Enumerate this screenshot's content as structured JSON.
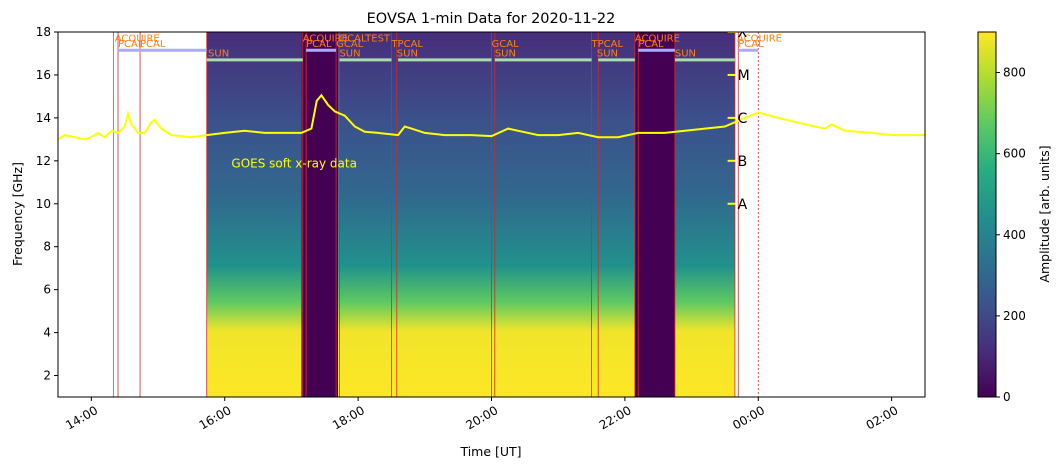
{
  "chart_data": {
    "type": "heatmap",
    "title": "EOVSA 1-min Data for 2020-11-22",
    "xlabel": "Time [UT]",
    "ylabel": "Frequency [GHz]",
    "xlim_hours": [
      13.5,
      26.5
    ],
    "ylim": [
      1,
      18
    ],
    "x_ticks": [
      {
        "hour": 14,
        "label": "14:00"
      },
      {
        "hour": 16,
        "label": "16:00"
      },
      {
        "hour": 18,
        "label": "18:00"
      },
      {
        "hour": 20,
        "label": "20:00"
      },
      {
        "hour": 22,
        "label": "22:00"
      },
      {
        "hour": 24,
        "label": "00:00"
      },
      {
        "hour": 26,
        "label": "02:00"
      }
    ],
    "y_ticks": [
      {
        "value": 2,
        "label": "2"
      },
      {
        "value": 4,
        "label": "4"
      },
      {
        "value": 6,
        "label": "6"
      },
      {
        "value": 8,
        "label": "8"
      },
      {
        "value": 10,
        "label": "10"
      },
      {
        "value": 12,
        "label": "12"
      },
      {
        "value": 14,
        "label": "14"
      },
      {
        "value": 16,
        "label": "16"
      },
      {
        "value": 18,
        "label": "18"
      }
    ],
    "colorbar": {
      "label": "Amplitude [arb. units]",
      "range": [
        0,
        900
      ],
      "colormap": "viridis",
      "ticks": [
        {
          "value": 0,
          "label": "0"
        },
        {
          "value": 200,
          "label": "200"
        },
        {
          "value": 400,
          "label": "400"
        },
        {
          "value": 600,
          "label": "600"
        },
        {
          "value": 800,
          "label": "800"
        }
      ]
    },
    "data_segments": [
      {
        "start": 15.73,
        "end": 17.15,
        "kind": "sun"
      },
      {
        "start": 17.15,
        "end": 17.7,
        "kind": "calibration"
      },
      {
        "start": 17.7,
        "end": 22.15,
        "kind": "sun"
      },
      {
        "start": 22.15,
        "end": 22.75,
        "kind": "calibration"
      },
      {
        "start": 22.75,
        "end": 23.65,
        "kind": "sun"
      }
    ],
    "schedule_lines": [
      {
        "hour": 14.33,
        "color": "#2ca02c"
      },
      {
        "hour": 14.4,
        "color": "#d62728"
      },
      {
        "hour": 14.73,
        "color": "#d62728"
      },
      {
        "hour": 15.73,
        "color": "#d62728"
      },
      {
        "hour": 17.17,
        "color": "#d62728"
      },
      {
        "hour": 17.22,
        "color": "#d62728"
      },
      {
        "hour": 17.67,
        "color": "#d62728"
      },
      {
        "hour": 17.72,
        "color": "#d62728"
      },
      {
        "hour": 18.5,
        "color": "#d62728"
      },
      {
        "hour": 18.58,
        "color": "#d62728"
      },
      {
        "hour": 20.0,
        "color": "#d62728"
      },
      {
        "hour": 20.05,
        "color": "#d62728"
      },
      {
        "hour": 21.5,
        "color": "#d62728"
      },
      {
        "hour": 21.6,
        "color": "#d62728"
      },
      {
        "hour": 22.15,
        "color": "#d62728"
      },
      {
        "hour": 22.2,
        "color": "#d62728"
      },
      {
        "hour": 22.75,
        "color": "#d62728"
      },
      {
        "hour": 23.65,
        "color": "#d62728"
      },
      {
        "hour": 23.7,
        "color": "#d62728"
      },
      {
        "hour": 24.0,
        "color": "#d62728",
        "dashed": true
      }
    ],
    "schedule_bars": [
      {
        "start": 14.4,
        "end": 15.73,
        "y": 17.15,
        "color": "#aaaaff"
      },
      {
        "start": 15.73,
        "end": 17.17,
        "y": 16.7,
        "color": "#aaddaa"
      },
      {
        "start": 17.22,
        "end": 17.67,
        "y": 17.15,
        "color": "#aaaaff"
      },
      {
        "start": 17.72,
        "end": 18.5,
        "y": 16.7,
        "color": "#aaddaa"
      },
      {
        "start": 18.6,
        "end": 20.0,
        "y": 16.7,
        "color": "#aaddaa"
      },
      {
        "start": 20.05,
        "end": 21.5,
        "y": 16.7,
        "color": "#aaddaa"
      },
      {
        "start": 21.6,
        "end": 22.15,
        "y": 16.7,
        "color": "#aaddaa"
      },
      {
        "start": 22.2,
        "end": 22.75,
        "y": 17.15,
        "color": "#aaaaff"
      },
      {
        "start": 22.75,
        "end": 23.65,
        "y": 16.7,
        "color": "#aaddaa"
      },
      {
        "start": 23.7,
        "end": 24.0,
        "y": 17.15,
        "color": "#aaaaff"
      }
    ],
    "schedule_labels": [
      {
        "hour": 14.35,
        "y": 17.55,
        "text": "ACQUIRE"
      },
      {
        "hour": 14.4,
        "y": 17.3,
        "text": "PCAL"
      },
      {
        "hour": 14.73,
        "y": 17.3,
        "text": "PCAL"
      },
      {
        "hour": 15.75,
        "y": 16.85,
        "text": "SUN"
      },
      {
        "hour": 17.17,
        "y": 17.55,
        "text": "ACQUIRE"
      },
      {
        "hour": 17.22,
        "y": 17.3,
        "text": "PCAL"
      },
      {
        "hour": 17.72,
        "y": 17.55,
        "text": "DCALTEST"
      },
      {
        "hour": 17.67,
        "y": 17.3,
        "text": "GCAL"
      },
      {
        "hour": 17.72,
        "y": 16.85,
        "text": "SUN"
      },
      {
        "hour": 18.5,
        "y": 17.3,
        "text": "TPCAL"
      },
      {
        "hour": 18.58,
        "y": 16.85,
        "text": "SUN"
      },
      {
        "hour": 20.0,
        "y": 17.3,
        "text": "GCAL"
      },
      {
        "hour": 20.05,
        "y": 16.85,
        "text": "SUN"
      },
      {
        "hour": 21.5,
        "y": 17.3,
        "text": "TPCAL"
      },
      {
        "hour": 21.58,
        "y": 16.85,
        "text": "SUN"
      },
      {
        "hour": 22.15,
        "y": 17.55,
        "text": "ACQUIRE"
      },
      {
        "hour": 22.2,
        "y": 17.3,
        "text": "PCAL"
      },
      {
        "hour": 22.75,
        "y": 16.85,
        "text": "SUN"
      },
      {
        "hour": 23.68,
        "y": 17.55,
        "text": "ACQUIRE"
      },
      {
        "hour": 23.7,
        "y": 17.3,
        "text": "PCAL"
      }
    ],
    "goes": {
      "label": "GOES soft x-ray data",
      "label_pos": {
        "hour": 16.1,
        "y": 11.7
      },
      "color": "#ffff00",
      "class_ticks": [
        {
          "label": "X",
          "y": 18.0
        },
        {
          "label": "M",
          "y": 16.0
        },
        {
          "label": "C",
          "y": 14.0
        },
        {
          "label": "B",
          "y": 12.0
        },
        {
          "label": "A",
          "y": 10.0
        }
      ],
      "class_tick_hour": 23.6,
      "curve": [
        [
          13.5,
          13.0
        ],
        [
          13.6,
          13.2
        ],
        [
          13.75,
          13.1
        ],
        [
          13.9,
          13.0
        ],
        [
          14.0,
          13.1
        ],
        [
          14.1,
          13.3
        ],
        [
          14.2,
          13.1
        ],
        [
          14.3,
          13.4
        ],
        [
          14.4,
          13.3
        ],
        [
          14.5,
          13.6
        ],
        [
          14.55,
          14.2
        ],
        [
          14.6,
          13.7
        ],
        [
          14.7,
          13.3
        ],
        [
          14.8,
          13.3
        ],
        [
          14.9,
          13.8
        ],
        [
          14.95,
          13.9
        ],
        [
          15.05,
          13.5
        ],
        [
          15.2,
          13.2
        ],
        [
          15.5,
          13.1
        ],
        [
          15.73,
          13.2
        ],
        [
          16.0,
          13.3
        ],
        [
          16.3,
          13.4
        ],
        [
          16.6,
          13.3
        ],
        [
          16.9,
          13.3
        ],
        [
          17.15,
          13.3
        ],
        [
          17.3,
          13.5
        ],
        [
          17.38,
          14.8
        ],
        [
          17.45,
          15.05
        ],
        [
          17.55,
          14.6
        ],
        [
          17.65,
          14.3
        ],
        [
          17.8,
          14.1
        ],
        [
          17.95,
          13.6
        ],
        [
          18.1,
          13.35
        ],
        [
          18.3,
          13.3
        ],
        [
          18.6,
          13.2
        ],
        [
          18.7,
          13.6
        ],
        [
          18.8,
          13.5
        ],
        [
          19.0,
          13.3
        ],
        [
          19.3,
          13.2
        ],
        [
          19.7,
          13.2
        ],
        [
          20.0,
          13.15
        ],
        [
          20.25,
          13.5
        ],
        [
          20.4,
          13.4
        ],
        [
          20.7,
          13.2
        ],
        [
          21.0,
          13.2
        ],
        [
          21.3,
          13.3
        ],
        [
          21.6,
          13.1
        ],
        [
          21.9,
          13.1
        ],
        [
          22.2,
          13.3
        ],
        [
          22.6,
          13.3
        ],
        [
          22.9,
          13.4
        ],
        [
          23.2,
          13.5
        ],
        [
          23.5,
          13.6
        ],
        [
          23.8,
          14.0
        ],
        [
          24.0,
          14.25
        ],
        [
          24.3,
          14.0
        ],
        [
          24.7,
          13.7
        ],
        [
          25.0,
          13.5
        ],
        [
          25.1,
          13.7
        ],
        [
          25.3,
          13.4
        ],
        [
          25.7,
          13.3
        ],
        [
          26.0,
          13.2
        ],
        [
          26.5,
          13.2
        ]
      ]
    }
  }
}
